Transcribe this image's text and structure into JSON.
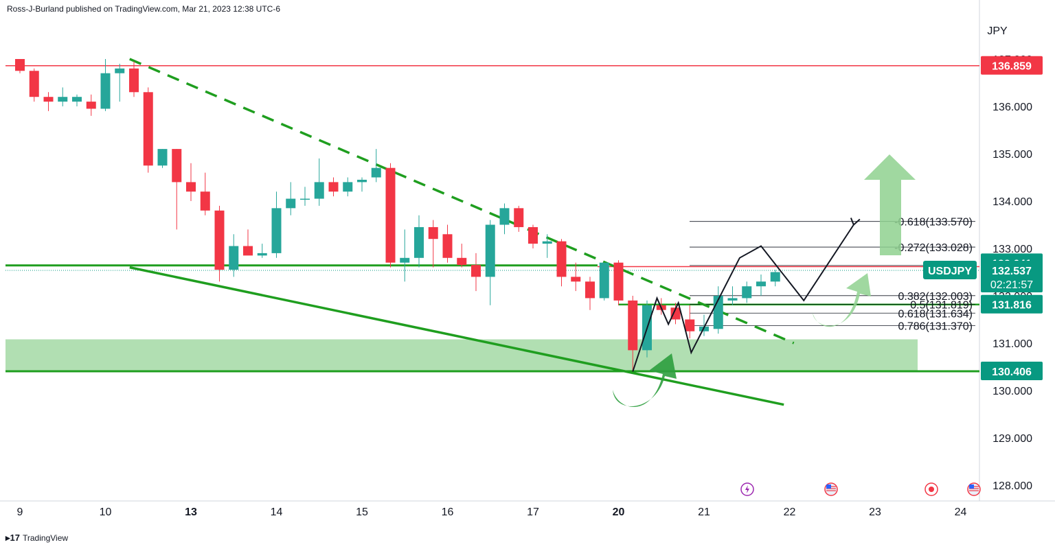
{
  "header": {
    "attribution": "Ross-J-Burland published on TradingView.com, Mar 21, 2023 12:38 UTC-6"
  },
  "footer": {
    "brand": "TradingView"
  },
  "chart_data": {
    "type": "candlestick",
    "symbol": "USDJPY",
    "currency": "JPY",
    "countdown": "02:21:57",
    "y_axis": {
      "range": [
        127.6,
        137.6
      ],
      "ticks": [
        "137.000",
        "136.000",
        "135.000",
        "134.000",
        "133.000",
        "132.000",
        "131.000",
        "130.000",
        "129.000",
        "128.000"
      ]
    },
    "x_axis": {
      "labels": [
        {
          "label": "9",
          "bold": false,
          "index": 0
        },
        {
          "label": "10",
          "bold": false,
          "index": 6
        },
        {
          "label": "13",
          "bold": true,
          "index": 12
        },
        {
          "label": "14",
          "bold": false,
          "index": 18
        },
        {
          "label": "15",
          "bold": false,
          "index": 24
        },
        {
          "label": "16",
          "bold": false,
          "index": 30
        },
        {
          "label": "17",
          "bold": false,
          "index": 36
        },
        {
          "label": "20",
          "bold": true,
          "index": 42
        },
        {
          "label": "21",
          "bold": false,
          "index": 48
        },
        {
          "label": "22",
          "bold": false,
          "index": 54
        },
        {
          "label": "23",
          "bold": false,
          "index": 60
        },
        {
          "label": "24",
          "bold": false,
          "index": 66
        }
      ]
    },
    "colors": {
      "up": "#26a69a",
      "down": "#f23645",
      "level_red": "#f23645",
      "level_green": "#089981",
      "trend": "#1f9e1f",
      "zone": "#a8dcaa",
      "arrow": "#8fd18f"
    },
    "candles": [
      [
        137.0,
        137.0,
        136.7,
        136.75
      ],
      [
        136.75,
        136.8,
        136.1,
        136.2
      ],
      [
        136.2,
        136.3,
        135.9,
        136.1
      ],
      [
        136.1,
        136.4,
        136.0,
        136.2
      ],
      [
        136.1,
        136.25,
        136.0,
        136.2
      ],
      [
        136.1,
        136.25,
        135.8,
        135.95
      ],
      [
        135.95,
        137.0,
        135.9,
        136.7
      ],
      [
        136.7,
        136.9,
        136.1,
        136.8
      ],
      [
        136.8,
        136.95,
        136.2,
        136.3
      ],
      [
        136.3,
        136.4,
        134.6,
        134.75
      ],
      [
        134.75,
        135.1,
        134.7,
        135.1
      ],
      [
        135.1,
        135.1,
        133.4,
        134.4
      ],
      [
        134.4,
        134.8,
        134.0,
        134.2
      ],
      [
        134.2,
        134.6,
        133.7,
        133.8
      ],
      [
        133.8,
        133.9,
        132.3,
        132.55
      ],
      [
        132.55,
        133.3,
        132.4,
        133.05
      ],
      [
        133.05,
        133.4,
        132.9,
        132.85
      ],
      [
        132.85,
        133.1,
        132.8,
        132.9
      ],
      [
        132.9,
        134.2,
        132.8,
        133.85
      ],
      [
        133.85,
        134.4,
        133.7,
        134.05
      ],
      [
        134.05,
        134.3,
        133.9,
        134.05
      ],
      [
        134.05,
        134.9,
        133.9,
        134.4
      ],
      [
        134.4,
        134.5,
        134.1,
        134.2
      ],
      [
        134.2,
        134.5,
        134.1,
        134.4
      ],
      [
        134.4,
        134.5,
        134.2,
        134.45
      ],
      [
        134.5,
        135.1,
        134.4,
        134.7
      ],
      [
        134.7,
        134.8,
        132.6,
        132.7
      ],
      [
        132.7,
        133.4,
        132.3,
        132.8
      ],
      [
        132.8,
        133.7,
        132.6,
        133.45
      ],
      [
        133.45,
        133.6,
        132.6,
        133.2
      ],
      [
        133.3,
        133.5,
        132.7,
        132.8
      ],
      [
        132.8,
        133.1,
        132.6,
        132.65
      ],
      [
        132.65,
        132.9,
        132.1,
        132.4
      ],
      [
        132.4,
        133.6,
        131.8,
        133.5
      ],
      [
        133.5,
        133.95,
        133.3,
        133.85
      ],
      [
        133.85,
        133.9,
        133.35,
        133.45
      ],
      [
        133.45,
        133.5,
        133.0,
        133.1
      ],
      [
        133.1,
        133.3,
        132.8,
        133.15
      ],
      [
        133.15,
        133.2,
        132.2,
        132.4
      ],
      [
        132.4,
        132.7,
        132.1,
        132.3
      ],
      [
        132.3,
        132.4,
        131.7,
        131.95
      ],
      [
        131.95,
        132.7,
        131.9,
        132.7
      ],
      [
        132.7,
        132.75,
        131.8,
        131.9
      ],
      [
        131.9,
        132.0,
        130.4,
        130.85
      ],
      [
        130.85,
        131.9,
        130.7,
        131.8
      ],
      [
        131.8,
        131.95,
        131.6,
        131.7
      ],
      [
        131.75,
        131.85,
        131.4,
        131.5
      ],
      [
        131.5,
        131.8,
        131.1,
        131.25
      ],
      [
        131.25,
        131.6,
        131.15,
        131.35
      ],
      [
        131.3,
        132.2,
        131.2,
        132.0
      ],
      [
        131.9,
        132.2,
        131.8,
        131.95
      ],
      [
        131.95,
        132.3,
        131.85,
        132.2
      ],
      [
        132.2,
        132.45,
        132.0,
        132.3
      ],
      [
        132.3,
        132.55,
        132.2,
        132.5
      ]
    ],
    "levels": [
      {
        "value": 136.859,
        "label": "136.859",
        "color": "#f23645"
      },
      {
        "value": 132.641,
        "label": "132.641",
        "color": "#089981"
      },
      {
        "value": 132.616,
        "label": "132.616",
        "color": "#f23645"
      },
      {
        "value": 132.537,
        "label": "132.537",
        "color": "#089981"
      },
      {
        "value": 131.816,
        "label": "131.816",
        "color": "#089981"
      },
      {
        "value": 130.406,
        "label": "130.406",
        "color": "#089981"
      }
    ],
    "fibonacci": [
      {
        "level": "-0.618",
        "value": 133.57,
        "label": "-0.618(133.570)"
      },
      {
        "level": "-0.272",
        "value": 133.028,
        "label": "-0.272(133.028)"
      },
      {
        "level": "0",
        "value": 132.64,
        "label": "0("
      },
      {
        "level": "0.382",
        "value": 132.003,
        "label": "0.382(132.003)"
      },
      {
        "level": "0.5",
        "value": 131.819,
        "label": "0.5(131.819)"
      },
      {
        "level": "0.618",
        "value": 131.634,
        "label": "0.618(131.634)"
      },
      {
        "level": "0.786",
        "value": 131.37,
        "label": "0.786(131.370)"
      }
    ],
    "support_zone": [
      130.406,
      131.08
    ],
    "trendlines": {
      "descending_dashed": [
        [
          7.7,
          137.0
        ],
        [
          54.3,
          131.0
        ]
      ],
      "ascending_support": [
        [
          7.7,
          132.6
        ],
        [
          53.6,
          129.7
        ]
      ]
    },
    "projection_path": [
      [
        43.0,
        130.4
      ],
      [
        44.7,
        131.95
      ],
      [
        45.5,
        131.4
      ],
      [
        46.2,
        131.85
      ],
      [
        47.1,
        130.8
      ],
      [
        50.5,
        132.8
      ],
      [
        52.0,
        133.05
      ],
      [
        55.0,
        131.9
      ],
      [
        58.5,
        133.5
      ]
    ],
    "event_icons": [
      "lightning-icon",
      "us-flag-icon",
      "record-icon",
      "us-flag-icon"
    ]
  }
}
